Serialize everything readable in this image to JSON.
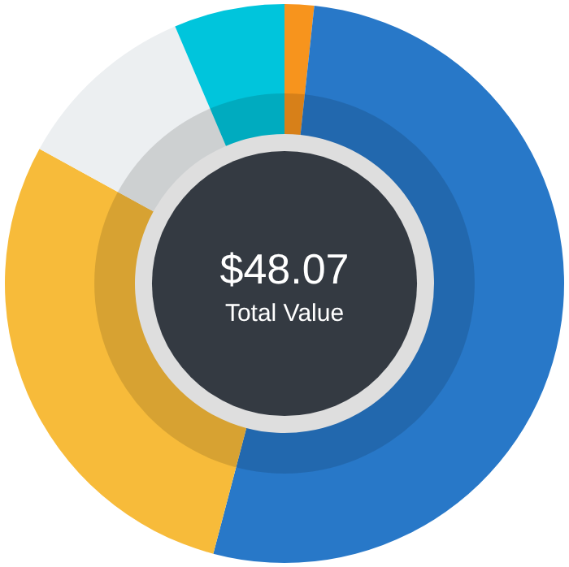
{
  "chart_data": {
    "type": "donut",
    "categories": [
      null,
      null,
      null,
      null,
      null
    ],
    "values": [
      1.7,
      52.4,
      28.9,
      10.6,
      6.4
    ],
    "colors": [
      "#f7941d",
      "#2878c8",
      "#f7bb3a",
      "#eceff1",
      "#00c5dc"
    ],
    "annotations": [
      "$48.07",
      "Total Value"
    ]
  }
}
